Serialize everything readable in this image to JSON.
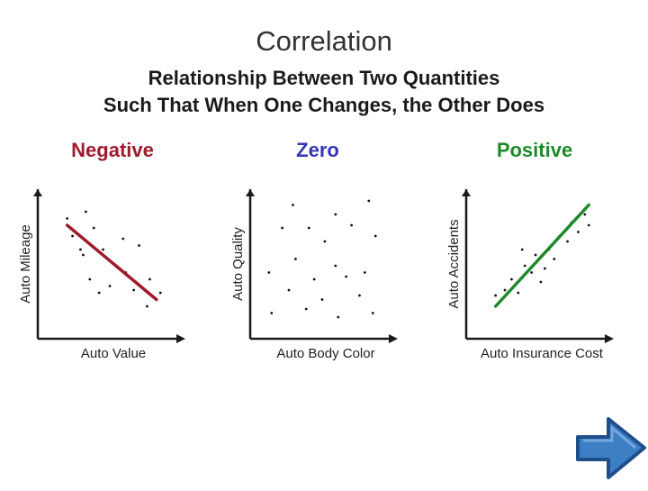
{
  "header": {
    "title": "Correlation",
    "subtitle_line1": "Relationship Between Two Quantities",
    "subtitle_line2": "Such That When One Changes, the Other Does"
  },
  "colors": {
    "negative": "#a01a2e",
    "zero": "#3535b5",
    "positive": "#1f8a2a",
    "axis": "#1a1a1a",
    "arrow_fill": "#3d7fc4"
  },
  "nav": {
    "next_icon": "right-arrow-icon"
  },
  "chart_data": [
    {
      "type": "scatter",
      "title": "Negative",
      "xlabel": "Auto Value",
      "ylabel": "Auto Mileage",
      "xlim": [
        0,
        100
      ],
      "ylim": [
        0,
        100
      ],
      "trendline": true,
      "trend": {
        "x": [
          18,
          85
        ],
        "y": [
          80,
          25
        ]
      },
      "points": [
        {
          "x": 18,
          "y": 85
        },
        {
          "x": 32,
          "y": 90
        },
        {
          "x": 22,
          "y": 72
        },
        {
          "x": 38,
          "y": 78
        },
        {
          "x": 45,
          "y": 62
        },
        {
          "x": 30,
          "y": 58
        },
        {
          "x": 60,
          "y": 70
        },
        {
          "x": 55,
          "y": 50
        },
        {
          "x": 72,
          "y": 65
        },
        {
          "x": 80,
          "y": 40
        },
        {
          "x": 50,
          "y": 35
        },
        {
          "x": 35,
          "y": 40
        },
        {
          "x": 68,
          "y": 32
        },
        {
          "x": 42,
          "y": 30
        },
        {
          "x": 78,
          "y": 20
        },
        {
          "x": 28,
          "y": 62
        },
        {
          "x": 88,
          "y": 30
        },
        {
          "x": 62,
          "y": 45
        }
      ]
    },
    {
      "type": "scatter",
      "title": "Zero",
      "xlabel": "Auto Body Color",
      "ylabel": "Auto Quality",
      "xlim": [
        0,
        100
      ],
      "ylim": [
        0,
        100
      ],
      "trendline": false,
      "points": [
        {
          "x": 28,
          "y": 95
        },
        {
          "x": 85,
          "y": 98
        },
        {
          "x": 60,
          "y": 88
        },
        {
          "x": 40,
          "y": 78
        },
        {
          "x": 72,
          "y": 80
        },
        {
          "x": 20,
          "y": 78
        },
        {
          "x": 90,
          "y": 72
        },
        {
          "x": 52,
          "y": 68
        },
        {
          "x": 30,
          "y": 55
        },
        {
          "x": 60,
          "y": 50
        },
        {
          "x": 82,
          "y": 45
        },
        {
          "x": 10,
          "y": 45
        },
        {
          "x": 44,
          "y": 40
        },
        {
          "x": 68,
          "y": 42
        },
        {
          "x": 25,
          "y": 32
        },
        {
          "x": 50,
          "y": 25
        },
        {
          "x": 78,
          "y": 28
        },
        {
          "x": 12,
          "y": 15
        },
        {
          "x": 38,
          "y": 18
        },
        {
          "x": 62,
          "y": 12
        },
        {
          "x": 88,
          "y": 15
        }
      ]
    },
    {
      "type": "scatter",
      "title": "Positive",
      "xlabel": "Auto Insurance Cost",
      "ylabel": "Auto Accidents",
      "xlim": [
        0,
        100
      ],
      "ylim": [
        0,
        100
      ],
      "trendline": true,
      "trend": {
        "x": [
          18,
          88
        ],
        "y": [
          20,
          95
        ]
      },
      "points": [
        {
          "x": 18,
          "y": 28
        },
        {
          "x": 25,
          "y": 32
        },
        {
          "x": 30,
          "y": 40
        },
        {
          "x": 35,
          "y": 30
        },
        {
          "x": 40,
          "y": 50
        },
        {
          "x": 45,
          "y": 45
        },
        {
          "x": 48,
          "y": 58
        },
        {
          "x": 55,
          "y": 48
        },
        {
          "x": 58,
          "y": 62
        },
        {
          "x": 62,
          "y": 55
        },
        {
          "x": 66,
          "y": 72
        },
        {
          "x": 72,
          "y": 68
        },
        {
          "x": 75,
          "y": 82
        },
        {
          "x": 80,
          "y": 75
        },
        {
          "x": 85,
          "y": 88
        },
        {
          "x": 88,
          "y": 80
        },
        {
          "x": 38,
          "y": 62
        },
        {
          "x": 52,
          "y": 38
        }
      ]
    }
  ]
}
